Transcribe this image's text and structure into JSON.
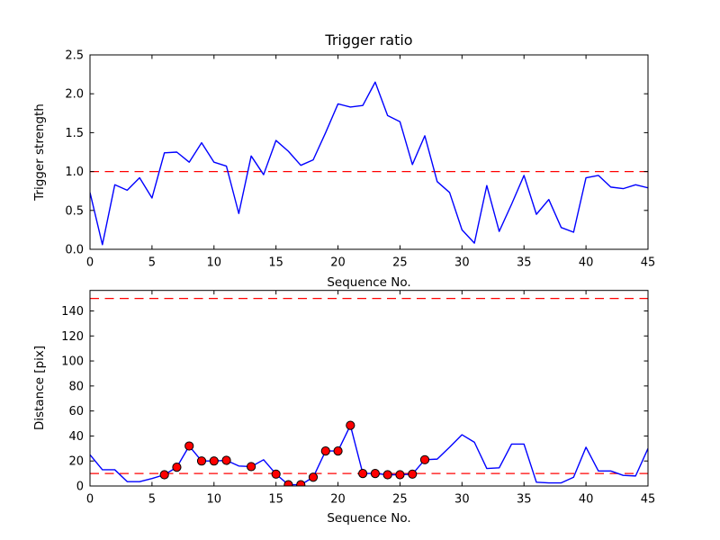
{
  "figure": {
    "title": "Trigger ratio",
    "background": "#ffffff"
  },
  "colors": {
    "series_line": "#0000ff",
    "threshold_line": "#ff0000",
    "marker_fill": "#ff0000",
    "marker_edge": "#000000",
    "axis": "#000000",
    "text": "#000000"
  },
  "chart_data": [
    {
      "id": "trigger-strength-plot",
      "type": "line",
      "title": "Trigger ratio",
      "xlabel": "Sequence No.",
      "ylabel": "Trigger strength",
      "xlim": [
        0,
        45
      ],
      "ylim": [
        0,
        2.5
      ],
      "xticks": [
        0,
        5,
        10,
        15,
        20,
        25,
        30,
        35,
        40,
        45
      ],
      "xtick_labels": [
        "0",
        "5",
        "10",
        "15",
        "20",
        "25",
        "30",
        "35",
        "40",
        "45"
      ],
      "yticks": [
        0,
        0.5,
        1.0,
        1.5,
        2.0,
        2.5
      ],
      "ytick_labels": [
        "0.0",
        "0.5",
        "1.0",
        "1.5",
        "2.0",
        "2.5"
      ],
      "grid": false,
      "legend": null,
      "threshold_lines": [
        1.0
      ],
      "line_color": "#0000ff",
      "threshold_color": "#ff0000",
      "x": [
        0,
        1,
        2,
        3,
        4,
        5,
        6,
        7,
        8,
        9,
        10,
        11,
        12,
        13,
        14,
        15,
        16,
        17,
        18,
        19,
        20,
        21,
        22,
        23,
        24,
        25,
        26,
        27,
        28,
        29,
        30,
        31,
        32,
        33,
        34,
        35,
        36,
        37,
        38,
        39,
        40,
        41,
        42,
        43,
        44,
        45
      ],
      "values": [
        0.73,
        0.06,
        0.83,
        0.76,
        0.92,
        0.66,
        1.24,
        1.25,
        1.12,
        1.37,
        1.12,
        1.07,
        0.46,
        1.2,
        0.96,
        1.4,
        1.26,
        1.08,
        1.15,
        1.5,
        1.87,
        1.83,
        1.85,
        2.15,
        1.72,
        1.64,
        1.09,
        1.46,
        0.87,
        0.73,
        0.25,
        0.08,
        0.82,
        0.23,
        0.58,
        0.95,
        0.45,
        0.64,
        0.28,
        0.22,
        0.92,
        0.95,
        0.8,
        0.78,
        0.83,
        0.79
      ]
    },
    {
      "id": "distance-plot",
      "type": "line",
      "title": "",
      "xlabel": "Sequence No.",
      "ylabel": "Distance [pix]",
      "xlim": [
        0,
        45
      ],
      "ylim": [
        0,
        156.4
      ],
      "xticks": [
        0,
        5,
        10,
        15,
        20,
        25,
        30,
        35,
        40,
        45
      ],
      "xtick_labels": [
        "0",
        "5",
        "10",
        "15",
        "20",
        "25",
        "30",
        "35",
        "40",
        "45"
      ],
      "yticks": [
        0,
        20,
        40,
        60,
        80,
        100,
        120,
        140
      ],
      "ytick_labels": [
        "0",
        "20",
        "40",
        "60",
        "80",
        "100",
        "120",
        "140"
      ],
      "grid": false,
      "legend": null,
      "threshold_lines": [
        150,
        10
      ],
      "line_color": "#0000ff",
      "threshold_color": "#ff0000",
      "marker_color": "#ff0000",
      "marker_edge_color": "#000000",
      "marker_x": [
        6,
        7,
        8,
        9,
        10,
        11,
        13,
        15,
        16,
        17,
        18,
        19,
        20,
        21,
        22,
        23,
        24,
        25,
        26,
        27
      ],
      "x": [
        0,
        1,
        2,
        3,
        4,
        5,
        6,
        7,
        8,
        9,
        10,
        11,
        12,
        13,
        14,
        15,
        16,
        17,
        18,
        19,
        20,
        21,
        22,
        23,
        24,
        25,
        26,
        27,
        28,
        29,
        30,
        31,
        32,
        33,
        34,
        35,
        36,
        37,
        38,
        39,
        40,
        41,
        42,
        43,
        44,
        45
      ],
      "values": [
        25,
        13,
        13,
        3.5,
        3.5,
        6,
        9,
        15,
        32,
        20,
        20,
        20.5,
        16,
        15.5,
        21,
        9.5,
        1,
        1,
        7,
        28,
        28,
        48.5,
        10,
        10,
        9,
        9,
        9.5,
        21,
        21.5,
        31,
        41,
        35,
        14,
        14.5,
        33.5,
        33.5,
        3,
        2.5,
        2.5,
        7,
        31,
        12,
        12,
        8.5,
        8,
        30
      ]
    }
  ]
}
